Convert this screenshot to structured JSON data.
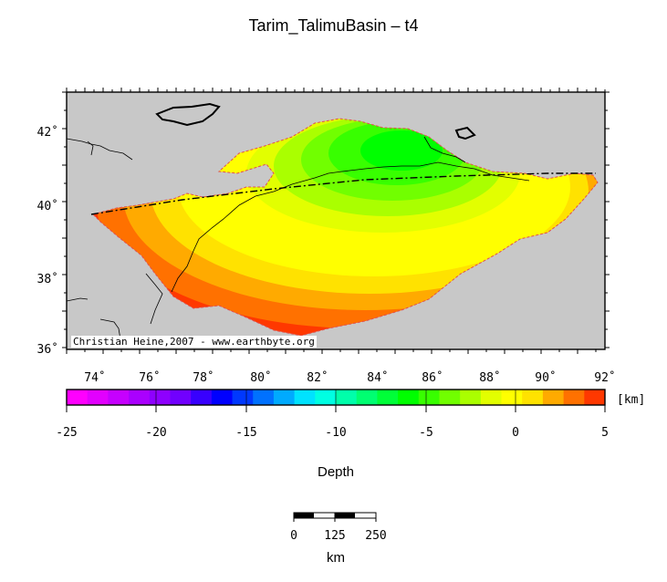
{
  "title": "Tarim_TalimuBasin – t4",
  "map": {
    "lat_ticks": [
      "42˚",
      "40˚",
      "38˚",
      "36˚"
    ],
    "lon_ticks": [
      "74˚",
      "76˚",
      "78˚",
      "80˚",
      "82˚",
      "84˚",
      "86˚",
      "88˚",
      "90˚",
      "92˚"
    ],
    "credit": "Christian Heine,2007 - www.earthbyte.org",
    "land_color": "#c8c8c8"
  },
  "colorbar": {
    "ticks": [
      "-25",
      "-20",
      "-15",
      "-10",
      "-5",
      "0",
      "5"
    ],
    "unit": "[km]",
    "label": "Depth",
    "colors": [
      "#ff00ff",
      "#e200ff",
      "#c600ff",
      "#aa00ff",
      "#8e00ff",
      "#7100ff",
      "#3800ff",
      "#0000ff",
      "#0038ff",
      "#0071ff",
      "#00aaff",
      "#00e2ff",
      "#00ffe2",
      "#00ffaa",
      "#00ff71",
      "#00ff38",
      "#00ff00",
      "#38ff00",
      "#71ff00",
      "#aaff00",
      "#e2ff00",
      "#ffff00",
      "#ffe200",
      "#ffaa00",
      "#ff7100",
      "#ff3800"
    ]
  },
  "scalebar": {
    "ticks": [
      "0",
      "125",
      "250"
    ],
    "unit": "km"
  }
}
